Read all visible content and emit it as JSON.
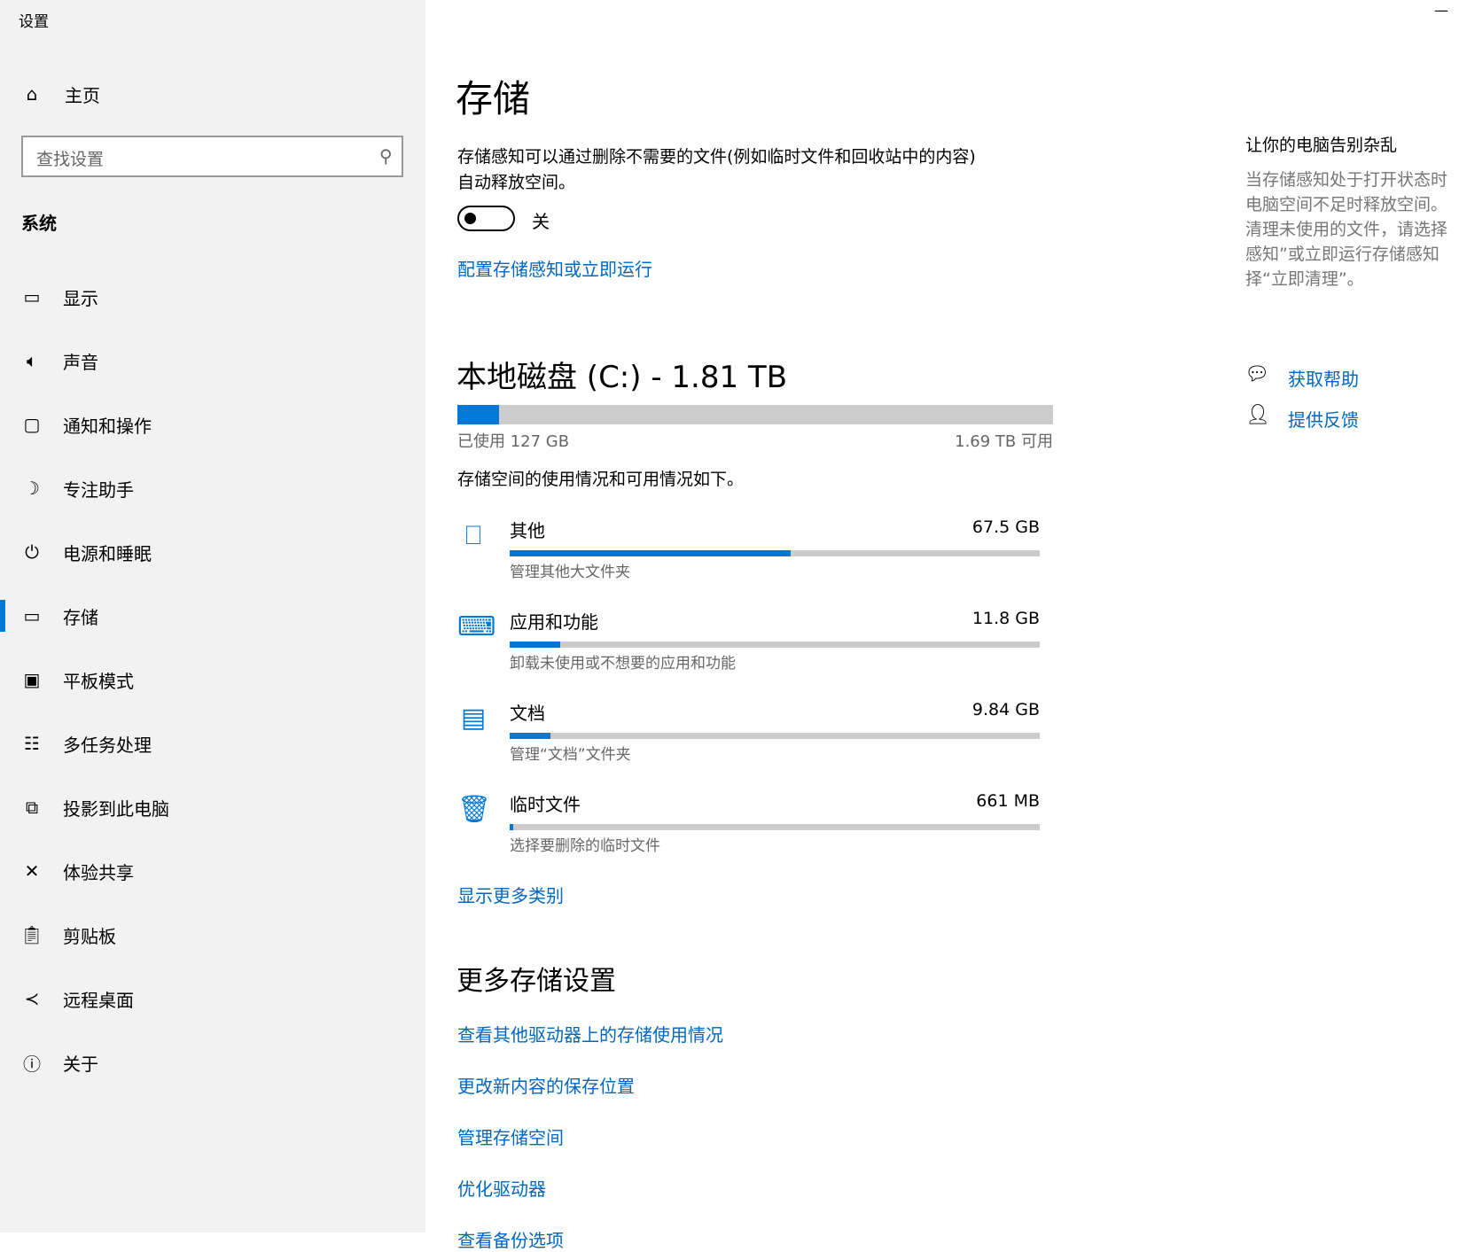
{
  "window": {
    "title": "设置",
    "minimize_icon": "minimize-icon"
  },
  "sidebar": {
    "home": "主页",
    "search_placeholder": "查找设置",
    "section": "系统",
    "items": [
      {
        "label": "显示",
        "icon": "monitor-icon"
      },
      {
        "label": "声音",
        "icon": "speaker-icon"
      },
      {
        "label": "通知和操作",
        "icon": "message-icon"
      },
      {
        "label": "专注助手",
        "icon": "moon-icon"
      },
      {
        "label": "电源和睡眠",
        "icon": "power-icon"
      },
      {
        "label": "存储",
        "icon": "drive-icon",
        "selected": true
      },
      {
        "label": "平板模式",
        "icon": "tablet-icon"
      },
      {
        "label": "多任务处理",
        "icon": "multitask-icon"
      },
      {
        "label": "投影到此电脑",
        "icon": "project-icon"
      },
      {
        "label": "体验共享",
        "icon": "share-icon"
      },
      {
        "label": "剪贴板",
        "icon": "clipboard-icon"
      },
      {
        "label": "远程桌面",
        "icon": "remote-icon"
      },
      {
        "label": "关于",
        "icon": "info-icon"
      }
    ]
  },
  "main": {
    "title": "存储",
    "sense_desc_1": "存储感知可以通过删除不需要的文件(例如临时文件和回收站中的内容)",
    "sense_desc_2": "自动释放空间。",
    "toggle_state": "关",
    "toggle_on": false,
    "configure_link": "配置存储感知或立即运行",
    "disk_title": "本地磁盘 (C:) - 1.81 TB",
    "used_label": "已使用 127 GB",
    "free_label": "1.69 TB 可用",
    "used_fraction": 0.07,
    "usage_desc": "存储空间的使用情况和可用情况如下。",
    "categories": [
      {
        "name": "其他",
        "size": "67.5 GB",
        "sub": "管理其他大文件夹",
        "fraction": 0.53,
        "icon": "folder-icon"
      },
      {
        "name": "应用和功能",
        "size": "11.8 GB",
        "sub": "卸载未使用或不想要的应用和功能",
        "fraction": 0.095,
        "icon": "keyboard-icon"
      },
      {
        "name": "文档",
        "size": "9.84 GB",
        "sub": "管理“文档”文件夹",
        "fraction": 0.077,
        "icon": "documents-icon"
      },
      {
        "name": "临时文件",
        "size": "661 MB",
        "sub": "选择要删除的临时文件",
        "fraction": 0.006,
        "icon": "trash-icon"
      }
    ],
    "show_more": "显示更多类别",
    "more_title": "更多存储设置",
    "more_links": [
      "查看其他驱动器上的存储使用情况",
      "更改新内容的保存位置",
      "管理存储空间",
      "优化驱动器",
      "查看备份选项"
    ]
  },
  "right": {
    "heading": "让你的电脑告别杂乱",
    "lines": [
      "当存储感知处于打开状态时",
      "电脑空间不足时释放空间。",
      "清理未使用的文件，请选择",
      "感知”或立即运行存储感知",
      "择“立即清理”。"
    ],
    "help": "获取帮助",
    "feedback": "提供反馈"
  },
  "colors": {
    "accent": "#0078d7",
    "link": "#0067c0",
    "sidebar_bg": "#f2f2f2"
  }
}
